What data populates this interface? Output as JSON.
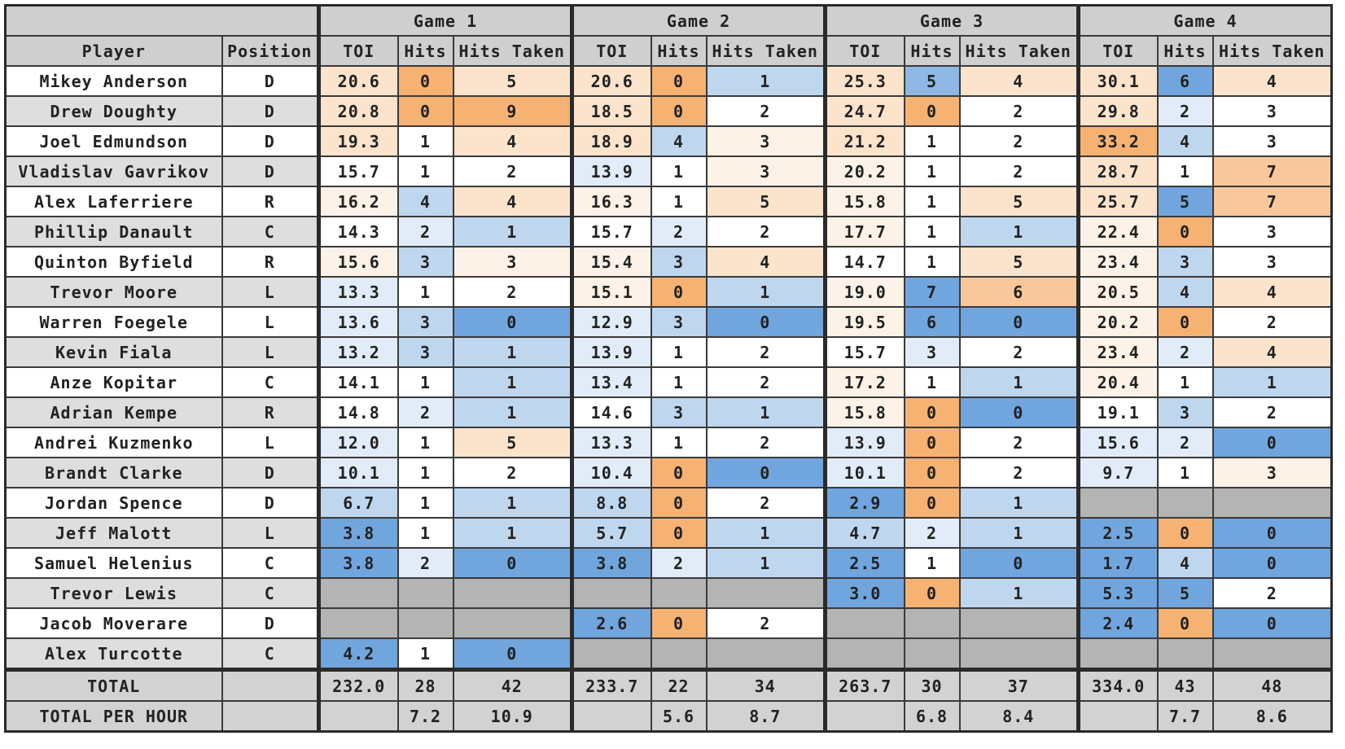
{
  "header": {
    "players_label": "Player",
    "position_label": "Position",
    "games": [
      {
        "name": "Game 1",
        "columns": [
          "TOI",
          "Hits",
          "Hits Taken"
        ]
      },
      {
        "name": "Game 2",
        "columns": [
          "TOI",
          "Hits",
          "Hits Taken"
        ]
      },
      {
        "name": "Game 3",
        "columns": [
          "TOI",
          "Hits",
          "Hits Taken"
        ]
      },
      {
        "name": "Game 4",
        "columns": [
          "TOI",
          "Hits",
          "Hits Taken"
        ]
      }
    ]
  },
  "rows": [
    {
      "player": "Mikey Anderson",
      "position": "D",
      "cells": [
        "20.6",
        "0",
        "5",
        "20.6",
        "0",
        "1",
        "25.3",
        "5",
        "4",
        "30.1",
        "6",
        "4"
      ],
      "fills": [
        "#fbe3cc",
        "#f5b273",
        "#fbe3cc",
        "#fbe3cc",
        "#f5b273",
        "#bfd6ef",
        "#fbe3cc",
        "#8fb8e4",
        "#fbe3cc",
        "#fbe3cc",
        "#71a5dd",
        "#fbe3cc"
      ]
    },
    {
      "player": "Drew Doughty",
      "position": "D",
      "cells": [
        "20.8",
        "0",
        "9",
        "18.5",
        "0",
        "2",
        "24.7",
        "0",
        "2",
        "29.8",
        "2",
        "3"
      ],
      "fills": [
        "#fbe3cc",
        "#f5b273",
        "#f5b273",
        "#fbe3cc",
        "#f5b273",
        "#ffffff",
        "#fbe3cc",
        "#f5b273",
        "#ffffff",
        "#fbe3cc",
        "#e1ecf8",
        "#ffffff"
      ]
    },
    {
      "player": "Joel Edmundson",
      "position": "D",
      "cells": [
        "19.3",
        "1",
        "4",
        "18.9",
        "4",
        "3",
        "21.2",
        "1",
        "2",
        "33.2",
        "4",
        "3"
      ],
      "fills": [
        "#fbe3cc",
        "#ffffff",
        "#fbe3cc",
        "#fbe3cc",
        "#bfd6ef",
        "#fdf2e7",
        "#fbe3cc",
        "#ffffff",
        "#ffffff",
        "#f5b273",
        "#bfd6ef",
        "#ffffff"
      ]
    },
    {
      "player": "Vladislav Gavrikov",
      "position": "D",
      "cells": [
        "15.7",
        "1",
        "2",
        "13.9",
        "1",
        "3",
        "20.2",
        "1",
        "2",
        "28.7",
        "1",
        "7"
      ],
      "fills": [
        "#ffffff",
        "#ffffff",
        "#ffffff",
        "#e1ecf8",
        "#ffffff",
        "#fdf2e7",
        "#fdf2e7",
        "#ffffff",
        "#ffffff",
        "#fbe3cc",
        "#ffffff",
        "#f8c89c"
      ]
    },
    {
      "player": "Alex Laferriere",
      "position": "R",
      "cells": [
        "16.2",
        "4",
        "4",
        "16.3",
        "1",
        "5",
        "15.8",
        "1",
        "5",
        "25.7",
        "5",
        "7"
      ],
      "fills": [
        "#fdf2e7",
        "#bfd6ef",
        "#fbe3cc",
        "#fdf2e7",
        "#ffffff",
        "#fbe3cc",
        "#fdf2e7",
        "#ffffff",
        "#fbe3cc",
        "#fbe3cc",
        "#71a5dd",
        "#f8c89c"
      ]
    },
    {
      "player": "Phillip Danault",
      "position": "C",
      "cells": [
        "14.3",
        "2",
        "1",
        "15.7",
        "2",
        "2",
        "17.7",
        "1",
        "1",
        "22.4",
        "0",
        "3"
      ],
      "fills": [
        "#ffffff",
        "#e1ecf8",
        "#bfd6ef",
        "#ffffff",
        "#e1ecf8",
        "#ffffff",
        "#fdf2e7",
        "#ffffff",
        "#bfd6ef",
        "#fdf2e7",
        "#f5b273",
        "#ffffff"
      ]
    },
    {
      "player": "Quinton Byfield",
      "position": "R",
      "cells": [
        "15.6",
        "3",
        "3",
        "15.4",
        "3",
        "4",
        "14.7",
        "1",
        "5",
        "23.4",
        "3",
        "3"
      ],
      "fills": [
        "#fdf2e7",
        "#bfd6ef",
        "#fdf2e7",
        "#fdf2e7",
        "#bfd6ef",
        "#fbe3cc",
        "#ffffff",
        "#ffffff",
        "#fbe3cc",
        "#fdf2e7",
        "#bfd6ef",
        "#ffffff"
      ]
    },
    {
      "player": "Trevor Moore",
      "position": "L",
      "cells": [
        "13.3",
        "1",
        "2",
        "15.1",
        "0",
        "1",
        "19.0",
        "7",
        "6",
        "20.5",
        "4",
        "4"
      ],
      "fills": [
        "#e1ecf8",
        "#ffffff",
        "#ffffff",
        "#fdf2e7",
        "#f5b273",
        "#bfd6ef",
        "#fdf2e7",
        "#71a5dd",
        "#f8c89c",
        "#fdf2e7",
        "#bfd6ef",
        "#fbe3cc"
      ]
    },
    {
      "player": "Warren Foegele",
      "position": "L",
      "cells": [
        "13.6",
        "3",
        "0",
        "12.9",
        "3",
        "0",
        "19.5",
        "6",
        "0",
        "20.2",
        "0",
        "2"
      ],
      "fills": [
        "#e1ecf8",
        "#bfd6ef",
        "#71a5dd",
        "#e1ecf8",
        "#bfd6ef",
        "#71a5dd",
        "#fdf2e7",
        "#71a5dd",
        "#71a5dd",
        "#fdf2e7",
        "#f5b273",
        "#ffffff"
      ]
    },
    {
      "player": "Kevin Fiala",
      "position": "L",
      "cells": [
        "13.2",
        "3",
        "1",
        "13.9",
        "1",
        "2",
        "15.7",
        "3",
        "2",
        "23.4",
        "2",
        "4"
      ],
      "fills": [
        "#e1ecf8",
        "#bfd6ef",
        "#bfd6ef",
        "#e1ecf8",
        "#ffffff",
        "#ffffff",
        "#ffffff",
        "#e1ecf8",
        "#ffffff",
        "#fdf2e7",
        "#e1ecf8",
        "#fbe3cc"
      ]
    },
    {
      "player": "Anze Kopitar",
      "position": "C",
      "cells": [
        "14.1",
        "1",
        "1",
        "13.4",
        "1",
        "2",
        "17.2",
        "1",
        "1",
        "20.4",
        "1",
        "1"
      ],
      "fills": [
        "#ffffff",
        "#ffffff",
        "#bfd6ef",
        "#e1ecf8",
        "#ffffff",
        "#ffffff",
        "#fdf2e7",
        "#ffffff",
        "#bfd6ef",
        "#fdf2e7",
        "#ffffff",
        "#bfd6ef"
      ]
    },
    {
      "player": "Adrian Kempe",
      "position": "R",
      "cells": [
        "14.8",
        "2",
        "1",
        "14.6",
        "3",
        "1",
        "15.8",
        "0",
        "0",
        "19.1",
        "3",
        "2"
      ],
      "fills": [
        "#ffffff",
        "#e1ecf8",
        "#bfd6ef",
        "#ffffff",
        "#bfd6ef",
        "#bfd6ef",
        "#fdf2e7",
        "#f5b273",
        "#71a5dd",
        "#ffffff",
        "#bfd6ef",
        "#ffffff"
      ]
    },
    {
      "player": "Andrei Kuzmenko",
      "position": "L",
      "cells": [
        "12.0",
        "1",
        "5",
        "13.3",
        "1",
        "2",
        "13.9",
        "0",
        "2",
        "15.6",
        "2",
        "0"
      ],
      "fills": [
        "#e1ecf8",
        "#ffffff",
        "#fbe3cc",
        "#e1ecf8",
        "#ffffff",
        "#ffffff",
        "#e1ecf8",
        "#f5b273",
        "#ffffff",
        "#e1ecf8",
        "#e1ecf8",
        "#71a5dd"
      ]
    },
    {
      "player": "Brandt Clarke",
      "position": "D",
      "cells": [
        "10.1",
        "1",
        "2",
        "10.4",
        "0",
        "0",
        "10.1",
        "0",
        "2",
        "9.7",
        "1",
        "3"
      ],
      "fills": [
        "#e1ecf8",
        "#ffffff",
        "#ffffff",
        "#e1ecf8",
        "#f5b273",
        "#71a5dd",
        "#e1ecf8",
        "#f5b273",
        "#ffffff",
        "#e1ecf8",
        "#ffffff",
        "#fdf2e7"
      ]
    },
    {
      "player": "Jordan Spence",
      "position": "D",
      "cells": [
        "6.7",
        "1",
        "1",
        "8.8",
        "0",
        "2",
        "2.9",
        "0",
        "1",
        null,
        null,
        null
      ],
      "fills": [
        "#bfd6ef",
        "#ffffff",
        "#bfd6ef",
        "#bfd6ef",
        "#f5b273",
        "#ffffff",
        "#71a5dd",
        "#f5b273",
        "#bfd6ef",
        "#b4b4b4",
        "#b4b4b4",
        "#b4b4b4"
      ]
    },
    {
      "player": "Jeff Malott",
      "position": "L",
      "cells": [
        "3.8",
        "1",
        "1",
        "5.7",
        "0",
        "1",
        "4.7",
        "2",
        "1",
        "2.5",
        "0",
        "0"
      ],
      "fills": [
        "#71a5dd",
        "#ffffff",
        "#bfd6ef",
        "#bfd6ef",
        "#f5b273",
        "#bfd6ef",
        "#bfd6ef",
        "#e1ecf8",
        "#bfd6ef",
        "#71a5dd",
        "#f5b273",
        "#71a5dd"
      ]
    },
    {
      "player": "Samuel Helenius",
      "position": "C",
      "cells": [
        "3.8",
        "2",
        "0",
        "3.8",
        "2",
        "1",
        "2.5",
        "1",
        "0",
        "1.7",
        "4",
        "0"
      ],
      "fills": [
        "#71a5dd",
        "#e1ecf8",
        "#71a5dd",
        "#71a5dd",
        "#e1ecf8",
        "#bfd6ef",
        "#71a5dd",
        "#ffffff",
        "#71a5dd",
        "#71a5dd",
        "#bfd6ef",
        "#71a5dd"
      ]
    },
    {
      "player": "Trevor Lewis",
      "position": "C",
      "cells": [
        null,
        null,
        null,
        null,
        null,
        null,
        "3.0",
        "0",
        "1",
        "5.3",
        "5",
        "2"
      ],
      "fills": [
        "#b4b4b4",
        "#b4b4b4",
        "#b4b4b4",
        "#b4b4b4",
        "#b4b4b4",
        "#b4b4b4",
        "#71a5dd",
        "#f5b273",
        "#bfd6ef",
        "#71a5dd",
        "#71a5dd",
        "#ffffff"
      ]
    },
    {
      "player": "Jacob Moverare",
      "position": "D",
      "cells": [
        null,
        null,
        null,
        "2.6",
        "0",
        "2",
        null,
        null,
        null,
        "2.4",
        "0",
        "0"
      ],
      "fills": [
        "#b4b4b4",
        "#b4b4b4",
        "#b4b4b4",
        "#71a5dd",
        "#f5b273",
        "#ffffff",
        "#b4b4b4",
        "#b4b4b4",
        "#b4b4b4",
        "#71a5dd",
        "#f5b273",
        "#71a5dd"
      ]
    },
    {
      "player": "Alex Turcotte",
      "position": "C",
      "cells": [
        "4.2",
        "1",
        "0",
        null,
        null,
        null,
        null,
        null,
        null,
        null,
        null,
        null
      ],
      "fills": [
        "#71a5dd",
        "#ffffff",
        "#71a5dd",
        "#b4b4b4",
        "#b4b4b4",
        "#b4b4b4",
        "#b4b4b4",
        "#b4b4b4",
        "#b4b4b4",
        "#b4b4b4",
        "#b4b4b4",
        "#b4b4b4"
      ]
    }
  ],
  "totals": [
    {
      "label": "TOTAL",
      "cells": [
        "232.0",
        "28",
        "42",
        "233.7",
        "22",
        "34",
        "263.7",
        "30",
        "37",
        "334.0",
        "43",
        "48"
      ]
    },
    {
      "label": "TOTAL PER HOUR",
      "cells": [
        null,
        "7.2",
        "10.9",
        null,
        "5.6",
        "8.7",
        null,
        "6.8",
        "8.4",
        null,
        "7.7",
        "8.6"
      ]
    }
  ]
}
